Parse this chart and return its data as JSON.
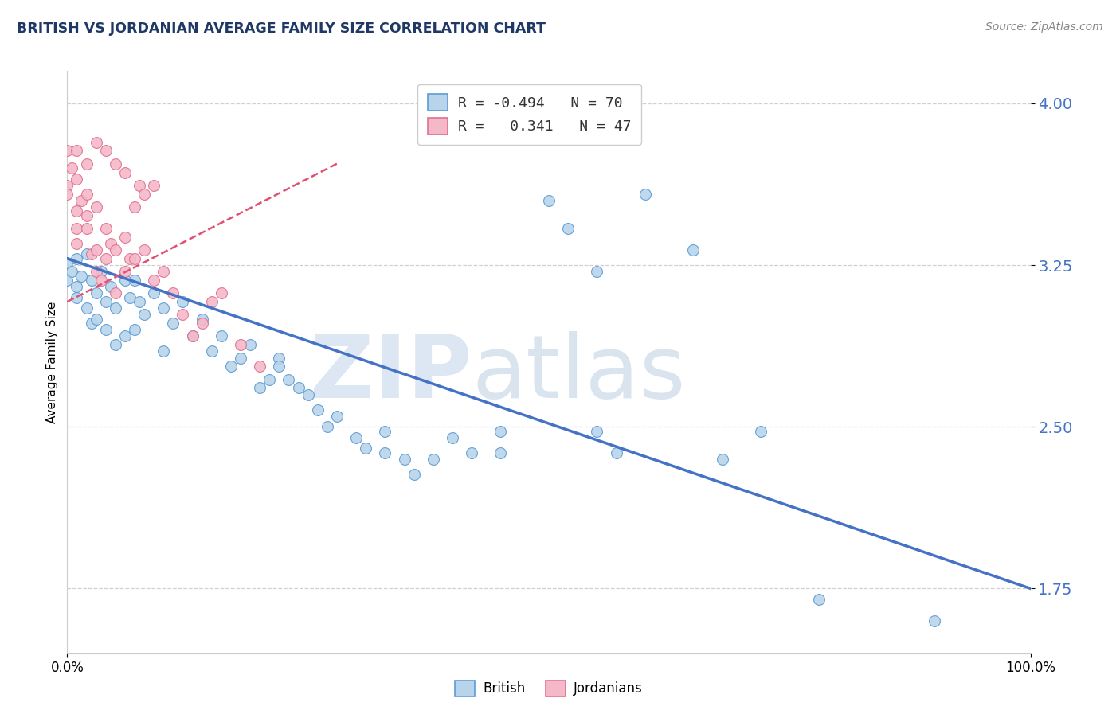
{
  "title": "BRITISH VS JORDANIAN AVERAGE FAMILY SIZE CORRELATION CHART",
  "source": "Source: ZipAtlas.com",
  "ylabel": "Average Family Size",
  "xlim": [
    0,
    1.0
  ],
  "ylim": [
    1.45,
    4.15
  ],
  "yticks": [
    1.75,
    2.5,
    3.25,
    4.0
  ],
  "ytick_labels": [
    "1.75",
    "2.50",
    "3.25",
    "4.00"
  ],
  "xtick_positions": [
    0.0,
    1.0
  ],
  "xtick_labels": [
    "0.0%",
    "100.0%"
  ],
  "watermark_zip": "ZIP",
  "watermark_atlas": "atlas",
  "legend_line1_r": "R = ",
  "legend_line1_val": "-0.494",
  "legend_line1_n": "N = ",
  "legend_line1_nval": "70",
  "legend_line2_r": "R =  ",
  "legend_line2_val": "0.341",
  "legend_line2_n": "N = ",
  "legend_line2_nval": "47",
  "british_fill_color": "#b8d4ea",
  "british_edge_color": "#5b9bd5",
  "jordanian_fill_color": "#f4b8c8",
  "jordanian_edge_color": "#e07090",
  "british_line_color": "#4472c4",
  "jordanian_line_color": "#e05070",
  "grid_color": "#d0d0d0",
  "title_color": "#1f3864",
  "ytick_color": "#4472c4",
  "source_color": "#888888",
  "british_scatter": [
    [
      0.0,
      3.26
    ],
    [
      0.0,
      3.18
    ],
    [
      0.005,
      3.22
    ],
    [
      0.01,
      3.15
    ],
    [
      0.01,
      3.28
    ],
    [
      0.01,
      3.1
    ],
    [
      0.015,
      3.2
    ],
    [
      0.02,
      3.3
    ],
    [
      0.02,
      3.05
    ],
    [
      0.025,
      3.18
    ],
    [
      0.025,
      2.98
    ],
    [
      0.03,
      3.12
    ],
    [
      0.03,
      3.0
    ],
    [
      0.035,
      3.22
    ],
    [
      0.04,
      3.08
    ],
    [
      0.04,
      2.95
    ],
    [
      0.045,
      3.15
    ],
    [
      0.05,
      3.05
    ],
    [
      0.05,
      2.88
    ],
    [
      0.06,
      3.18
    ],
    [
      0.06,
      2.92
    ],
    [
      0.065,
      3.1
    ],
    [
      0.07,
      3.18
    ],
    [
      0.07,
      2.95
    ],
    [
      0.075,
      3.08
    ],
    [
      0.08,
      3.02
    ],
    [
      0.09,
      3.12
    ],
    [
      0.1,
      3.05
    ],
    [
      0.1,
      2.85
    ],
    [
      0.11,
      2.98
    ],
    [
      0.12,
      3.08
    ],
    [
      0.13,
      2.92
    ],
    [
      0.14,
      3.0
    ],
    [
      0.15,
      2.85
    ],
    [
      0.16,
      2.92
    ],
    [
      0.17,
      2.78
    ],
    [
      0.18,
      2.82
    ],
    [
      0.19,
      2.88
    ],
    [
      0.2,
      2.68
    ],
    [
      0.21,
      2.72
    ],
    [
      0.22,
      2.82
    ],
    [
      0.22,
      2.78
    ],
    [
      0.23,
      2.72
    ],
    [
      0.24,
      2.68
    ],
    [
      0.25,
      2.65
    ],
    [
      0.26,
      2.58
    ],
    [
      0.27,
      2.5
    ],
    [
      0.28,
      2.55
    ],
    [
      0.3,
      2.45
    ],
    [
      0.31,
      2.4
    ],
    [
      0.33,
      2.48
    ],
    [
      0.33,
      2.38
    ],
    [
      0.35,
      2.35
    ],
    [
      0.36,
      2.28
    ],
    [
      0.38,
      2.35
    ],
    [
      0.4,
      2.45
    ],
    [
      0.42,
      2.38
    ],
    [
      0.45,
      2.48
    ],
    [
      0.45,
      2.38
    ],
    [
      0.5,
      3.55
    ],
    [
      0.52,
      3.42
    ],
    [
      0.55,
      3.22
    ],
    [
      0.55,
      2.48
    ],
    [
      0.57,
      2.38
    ],
    [
      0.6,
      3.58
    ],
    [
      0.65,
      3.32
    ],
    [
      0.68,
      2.35
    ],
    [
      0.72,
      2.48
    ],
    [
      0.78,
      1.7
    ],
    [
      0.9,
      1.6
    ]
  ],
  "jordanian_scatter": [
    [
      0.0,
      3.78
    ],
    [
      0.0,
      3.62
    ],
    [
      0.0,
      3.58
    ],
    [
      0.005,
      3.7
    ],
    [
      0.01,
      3.65
    ],
    [
      0.01,
      3.5
    ],
    [
      0.01,
      3.42
    ],
    [
      0.01,
      3.35
    ],
    [
      0.01,
      3.78
    ],
    [
      0.015,
      3.55
    ],
    [
      0.02,
      3.58
    ],
    [
      0.02,
      3.48
    ],
    [
      0.02,
      3.42
    ],
    [
      0.02,
      3.72
    ],
    [
      0.025,
      3.3
    ],
    [
      0.03,
      3.52
    ],
    [
      0.03,
      3.32
    ],
    [
      0.03,
      3.22
    ],
    [
      0.03,
      3.82
    ],
    [
      0.035,
      3.18
    ],
    [
      0.04,
      3.42
    ],
    [
      0.04,
      3.28
    ],
    [
      0.04,
      3.78
    ],
    [
      0.045,
      3.35
    ],
    [
      0.05,
      3.32
    ],
    [
      0.05,
      3.12
    ],
    [
      0.05,
      3.72
    ],
    [
      0.06,
      3.38
    ],
    [
      0.06,
      3.22
    ],
    [
      0.06,
      3.68
    ],
    [
      0.065,
      3.28
    ],
    [
      0.07,
      3.28
    ],
    [
      0.07,
      3.52
    ],
    [
      0.075,
      3.62
    ],
    [
      0.08,
      3.32
    ],
    [
      0.08,
      3.58
    ],
    [
      0.09,
      3.18
    ],
    [
      0.09,
      3.62
    ],
    [
      0.1,
      3.22
    ],
    [
      0.11,
      3.12
    ],
    [
      0.12,
      3.02
    ],
    [
      0.13,
      2.92
    ],
    [
      0.14,
      2.98
    ],
    [
      0.15,
      3.08
    ],
    [
      0.16,
      3.12
    ],
    [
      0.18,
      2.88
    ],
    [
      0.2,
      2.78
    ]
  ],
  "british_trendline_x": [
    0.0,
    1.0
  ],
  "british_trendline_y": [
    3.28,
    1.75
  ],
  "jordanian_trendline_x": [
    0.0,
    0.28
  ],
  "jordanian_trendline_y": [
    3.08,
    3.72
  ]
}
